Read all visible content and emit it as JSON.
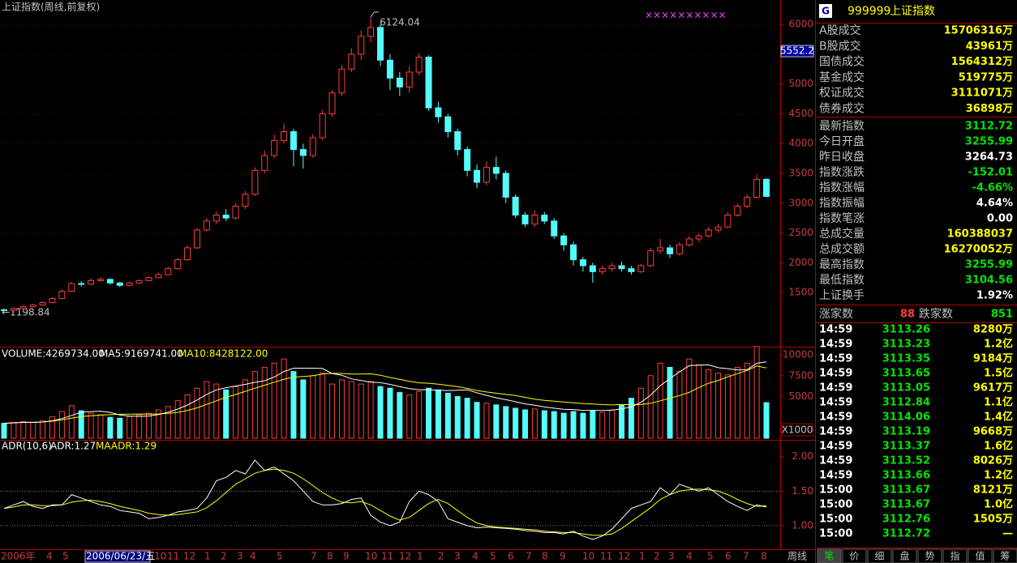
{
  "chart_data": {
    "type": "candlestick",
    "title": "上证指数(周线,前复权)",
    "open": [
      1210,
      1200,
      1230,
      1260,
      1290,
      1330,
      1400,
      1520,
      1650,
      1640,
      1700,
      1720,
      1660,
      1620,
      1660,
      1700,
      1750,
      1800,
      1900,
      2050,
      2250,
      2550,
      2700,
      2800,
      2750,
      2950,
      3150,
      3550,
      3800,
      4050,
      4200,
      3900,
      3800,
      4100,
      4500,
      4850,
      5250,
      5500,
      5800,
      5950,
      5400,
      5100,
      4950,
      5200,
      5450,
      4600,
      4450,
      4200,
      3900,
      3550,
      3350,
      3600,
      3500,
      3100,
      2800,
      2650,
      2800,
      2700,
      2450,
      2300,
      2050,
      1950,
      1850,
      1900,
      1950,
      1900,
      1850,
      1950,
      2200,
      2250,
      2150,
      2300,
      2400,
      2450,
      2550,
      2600,
      2800,
      2950,
      3100,
      3400
    ],
    "high": [
      1230,
      1250,
      1280,
      1310,
      1350,
      1420,
      1550,
      1680,
      1690,
      1740,
      1760,
      1740,
      1680,
      1690,
      1720,
      1770,
      1830,
      1930,
      2080,
      2290,
      2580,
      2750,
      2860,
      2900,
      3000,
      3200,
      3600,
      3880,
      4150,
      4340,
      4250,
      4000,
      4160,
      4560,
      4900,
      5320,
      5600,
      5900,
      6124.04,
      6000,
      5500,
      5200,
      5300,
      5520,
      5480,
      4700,
      4500,
      4250,
      3950,
      3650,
      3700,
      3780,
      3550,
      3150,
      2850,
      2880,
      2850,
      2750,
      2500,
      2350,
      2100,
      2000,
      1950,
      2000,
      2020,
      1950,
      1980,
      2250,
      2400,
      2300,
      2350,
      2450,
      2500,
      2600,
      2650,
      2850,
      2990,
      3150,
      3478,
      3420
    ],
    "low": [
      1198.84,
      1190,
      1220,
      1250,
      1280,
      1320,
      1390,
      1510,
      1600,
      1620,
      1680,
      1630,
      1590,
      1600,
      1640,
      1690,
      1740,
      1790,
      1880,
      2030,
      2230,
      2520,
      2650,
      2700,
      2720,
      2900,
      3120,
      3500,
      3760,
      4000,
      3620,
      3580,
      3760,
      4060,
      4450,
      4800,
      5200,
      5400,
      5700,
      5300,
      4900,
      4800,
      4850,
      5150,
      4550,
      4350,
      4100,
      3800,
      3450,
      3250,
      3300,
      3400,
      3000,
      2750,
      2600,
      2600,
      2650,
      2400,
      2200,
      1950,
      1850,
      1664,
      1800,
      1850,
      1850,
      1800,
      1830,
      1930,
      2150,
      2080,
      2120,
      2270,
      2350,
      2420,
      2500,
      2580,
      2770,
      2920,
      3080,
      3104.56
    ],
    "close": [
      1200,
      1230,
      1260,
      1290,
      1330,
      1400,
      1520,
      1650,
      1640,
      1700,
      1720,
      1660,
      1620,
      1660,
      1700,
      1750,
      1800,
      1900,
      2050,
      2250,
      2550,
      2700,
      2800,
      2750,
      2950,
      3150,
      3550,
      3800,
      4050,
      4200,
      3900,
      3800,
      4100,
      4500,
      4850,
      5250,
      5500,
      5800,
      5950,
      5400,
      5100,
      4950,
      5200,
      5450,
      4600,
      4450,
      4200,
      3900,
      3550,
      3350,
      3600,
      3500,
      3100,
      2800,
      2650,
      2800,
      2700,
      2450,
      2300,
      2050,
      1950,
      1850,
      1900,
      1950,
      1900,
      1850,
      1950,
      2200,
      2250,
      2150,
      2300,
      2400,
      2450,
      2550,
      2600,
      2800,
      2950,
      3100,
      3400,
      3112.72
    ],
    "ylim": [
      590,
      6410
    ],
    "yticks": [
      1500,
      2000,
      2500,
      3000,
      3500,
      4000,
      4500,
      5000,
      5500,
      6000
    ],
    "grid": true,
    "up_color": "#ff3c3c",
    "down_color": "#54fcfc",
    "low_label": "←1198.84",
    "cursor": 5552.2,
    "markers": "××××××××××",
    "x_labels": [
      "2006年",
      "4",
      "5",
      "2006/06/23/五",
      "10",
      "11",
      "12",
      "1",
      "2",
      "3",
      "4",
      "5",
      "7",
      "8",
      "9",
      "10",
      "11",
      "12",
      "1",
      "2",
      "3",
      "4",
      "5",
      "6",
      "7",
      "8",
      "9",
      "10",
      "11",
      "12",
      "1",
      "2",
      "3",
      "4",
      "5",
      "6",
      "7",
      "8"
    ],
    "period": "周线",
    "volume": {
      "title": "VOLUME:4269734.00",
      "ma5_title": "MA5:9169741.00",
      "ma10_title": "MA10:8428122.00",
      "unit": "X1000",
      "values": [
        1800,
        1900,
        2000,
        1900,
        2100,
        2600,
        3200,
        3900,
        3300,
        3000,
        2800,
        2500,
        2400,
        2600,
        2800,
        3000,
        3400,
        3800,
        4500,
        5200,
        6000,
        6800,
        6500,
        5800,
        6200,
        7000,
        8000,
        8500,
        9000,
        9500,
        8000,
        7000,
        7500,
        7800,
        6500,
        7000,
        6800,
        6500,
        6800,
        6200,
        6000,
        5500,
        5200,
        5600,
        6000,
        5800,
        5400,
        5000,
        4800,
        4300,
        4200,
        4000,
        3800,
        3600,
        3400,
        3500,
        3300,
        3200,
        3000,
        3200,
        3000,
        3300,
        3100,
        3400,
        4000,
        4800,
        6000,
        7500,
        9000,
        8500,
        8000,
        9500,
        8800,
        8200,
        7800,
        7600,
        8500,
        9000,
        11000,
        4269.73
      ],
      "ma5": [
        1800,
        1850,
        1900,
        1900,
        1940,
        2100,
        2360,
        2740,
        3120,
        3200,
        3240,
        3100,
        2800,
        2660,
        2620,
        2660,
        2840,
        3120,
        3500,
        3980,
        4580,
        5260,
        5800,
        6060,
        6260,
        6460,
        6700,
        6900,
        7340,
        8000,
        8400,
        8400,
        8400,
        8360,
        7760,
        7560,
        7120,
        6920,
        6720,
        6660,
        6460,
        6200,
        5940,
        5820,
        5820,
        5760,
        5720,
        5760,
        5800,
        5460,
        5140,
        4860,
        4620,
        4380,
        4120,
        3960,
        3760,
        3600,
        3480,
        3440,
        3340,
        3340,
        3320,
        3360,
        3520,
        3760,
        4300,
        5160,
        6300,
        7160,
        7960,
        8700,
        8760,
        8800,
        8460,
        8340,
        8180,
        8220,
        8980,
        9169.74
      ],
      "ma10": [
        1800,
        1850,
        1900,
        1900,
        1940,
        2050,
        2210,
        2420,
        2590,
        2700,
        2780,
        2830,
        2870,
        2890,
        2900,
        2880,
        2910,
        2980,
        3110,
        3330,
        3640,
        4060,
        4490,
        4900,
        5240,
        5620,
        6000,
        6360,
        6720,
        7080,
        7320,
        7400,
        7500,
        7700,
        7780,
        7770,
        7700,
        7700,
        7720,
        7560,
        7280,
        7070,
        6830,
        6640,
        6590,
        6480,
        6340,
        6190,
        5970,
        5730,
        5550,
        5400,
        5250,
        5120,
        4900,
        4680,
        4540,
        4440,
        4340,
        4240,
        4170,
        4100,
        4030,
        3990,
        4040,
        4030,
        4040,
        4200,
        4490,
        4800,
        5120,
        5500,
        6080,
        6590,
        6930,
        7350,
        7750,
        8130,
        8660,
        8428.12
      ],
      "ylim": [
        0,
        10780
      ],
      "yticks": [
        5000,
        7500,
        10000
      ],
      "ma5_color": "#ffffff",
      "ma10_color": "#ffff00"
    },
    "adr": {
      "title": "ADR(10,6)",
      "adr_title": "ADR:1.27",
      "maadr_title": "MAADR:1.29",
      "adr": [
        1.25,
        1.3,
        1.35,
        1.28,
        1.25,
        1.3,
        1.3,
        1.45,
        1.4,
        1.35,
        1.3,
        1.28,
        1.22,
        1.2,
        1.18,
        1.1,
        1.12,
        1.15,
        1.2,
        1.22,
        1.25,
        1.4,
        1.65,
        1.7,
        1.8,
        1.75,
        1.95,
        1.8,
        1.85,
        1.75,
        1.65,
        1.5,
        1.35,
        1.3,
        1.3,
        1.32,
        1.38,
        1.4,
        1.15,
        1.05,
        1.0,
        1.05,
        1.35,
        1.5,
        1.45,
        1.35,
        1.1,
        1.05,
        1.0,
        0.97,
        0.98,
        0.97,
        0.96,
        0.95,
        0.93,
        0.92,
        0.9,
        0.9,
        0.88,
        0.92,
        0.85,
        0.8,
        0.85,
        0.95,
        1.1,
        1.25,
        1.3,
        1.35,
        1.55,
        1.45,
        1.6,
        1.55,
        1.5,
        1.55,
        1.45,
        1.35,
        1.28,
        1.22,
        1.3,
        1.27
      ],
      "maadr": [
        1.25,
        1.27,
        1.3,
        1.3,
        1.29,
        1.29,
        1.3,
        1.34,
        1.36,
        1.37,
        1.35,
        1.32,
        1.28,
        1.25,
        1.22,
        1.18,
        1.16,
        1.15,
        1.16,
        1.18,
        1.2,
        1.26,
        1.36,
        1.48,
        1.6,
        1.68,
        1.76,
        1.8,
        1.82,
        1.8,
        1.76,
        1.68,
        1.58,
        1.48,
        1.4,
        1.34,
        1.33,
        1.35,
        1.3,
        1.22,
        1.14,
        1.08,
        1.12,
        1.22,
        1.32,
        1.38,
        1.32,
        1.22,
        1.12,
        1.04,
        1.0,
        0.98,
        0.97,
        0.96,
        0.95,
        0.94,
        0.92,
        0.91,
        0.9,
        0.9,
        0.88,
        0.86,
        0.86,
        0.88,
        0.96,
        1.06,
        1.16,
        1.26,
        1.38,
        1.45,
        1.5,
        1.52,
        1.53,
        1.52,
        1.5,
        1.45,
        1.38,
        1.32,
        1.28,
        1.29
      ],
      "ylim": [
        0.67,
        2.22
      ],
      "yticks": [
        {
          "value": 1,
          "label": "1.00"
        },
        {
          "value": 1.5,
          "label": "1.50"
        },
        {
          "value": 2,
          "label": "2.00"
        }
      ],
      "ref_lines": [
        1,
        1.5
      ],
      "adr_color": "#ffffff",
      "maadr_color": "#ffff00"
    }
  },
  "quote_panel": {
    "icon": "G",
    "code": "999999",
    "name": "上证指数",
    "turnover": [
      {
        "label": "A股成交",
        "value": "15706316万"
      },
      {
        "label": "B股成交",
        "value": "43961万"
      },
      {
        "label": "国债成交",
        "value": "1564312万"
      },
      {
        "label": "基金成交",
        "value": "519775万"
      },
      {
        "label": "权证成交",
        "value": "3111071万"
      },
      {
        "label": "债券成交",
        "value": "36898万"
      }
    ],
    "stats": [
      {
        "label": "最新指数",
        "value": "3112.72",
        "color": "#00e600"
      },
      {
        "label": "今日开盘",
        "value": "3255.99",
        "color": "#00e600"
      },
      {
        "label": "昨日收盘",
        "value": "3264.73",
        "color": "#ffffff"
      },
      {
        "label": "指数涨跌",
        "value": "-152.01",
        "color": "#00e600"
      },
      {
        "label": "指数涨幅",
        "value": "-4.66%",
        "color": "#00e600"
      },
      {
        "label": "指数振幅",
        "value": "4.64%",
        "color": "#ffffff"
      },
      {
        "label": "指数笔涨",
        "value": "0.00",
        "color": "#ffffff"
      },
      {
        "label": "总成交量",
        "value": "160388037",
        "color": "#ffff00"
      },
      {
        "label": "总成交额",
        "value": "16270052万",
        "color": "#ffff00"
      },
      {
        "label": "最高指数",
        "value": "3255.99",
        "color": "#00e600"
      },
      {
        "label": "最低指数",
        "value": "3104.56",
        "color": "#00e600"
      },
      {
        "label": "上证换手",
        "value": "1.92%",
        "color": "#ffffff"
      }
    ],
    "breadth": {
      "up_label": "涨家数",
      "up": 88,
      "down_label": "跌家数",
      "down": 851
    },
    "ticks": [
      {
        "time": "14:59",
        "price": "3113.26",
        "vol": "8280万"
      },
      {
        "time": "14:59",
        "price": "3113.23",
        "vol": "1.2亿"
      },
      {
        "time": "14:59",
        "price": "3113.35",
        "vol": "9184万"
      },
      {
        "time": "14:59",
        "price": "3113.65",
        "vol": "1.5亿"
      },
      {
        "time": "14:59",
        "price": "3113.05",
        "vol": "9617万"
      },
      {
        "time": "14:59",
        "price": "3112.84",
        "vol": "1.1亿"
      },
      {
        "time": "14:59",
        "price": "3114.06",
        "vol": "1.4亿"
      },
      {
        "time": "14:59",
        "price": "3113.19",
        "vol": "9668万"
      },
      {
        "time": "14:59",
        "price": "3113.37",
        "vol": "1.6亿"
      },
      {
        "time": "14:59",
        "price": "3113.52",
        "vol": "8026万"
      },
      {
        "time": "14:59",
        "price": "3113.66",
        "vol": "1.2亿"
      },
      {
        "time": "15:00",
        "price": "3113.67",
        "vol": "8121万"
      },
      {
        "time": "15:00",
        "price": "3113.67",
        "vol": "1.0亿"
      },
      {
        "time": "15:00",
        "price": "3112.76",
        "vol": "1505万"
      },
      {
        "time": "15:00",
        "price": "3112.72",
        "vol": "—"
      }
    ],
    "tabs": [
      "笔",
      "价",
      "细",
      "盘",
      "势",
      "指",
      "值",
      "筹"
    ]
  }
}
